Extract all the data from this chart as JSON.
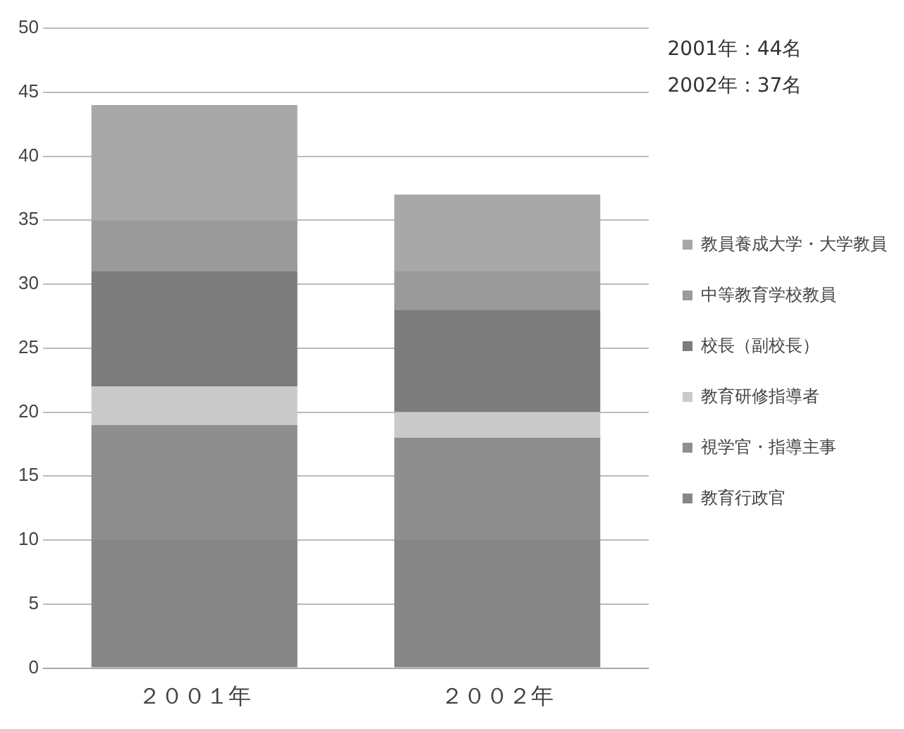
{
  "chart_data": {
    "type": "bar",
    "stacked": true,
    "categories": [
      "２００１年",
      "２００２年"
    ],
    "series": [
      {
        "name": "教員養成大学・大学教員",
        "color": "#a8a8a8",
        "values": [
          9,
          6
        ]
      },
      {
        "name": "中等教育学校教員",
        "color": "#9a9a9a",
        "values": [
          4,
          3
        ]
      },
      {
        "name": "校長（副校長）",
        "color": "#7c7c7c",
        "values": [
          9,
          8
        ]
      },
      {
        "name": "教育研修指導者",
        "color": "#cacaca",
        "values": [
          3,
          2
        ]
      },
      {
        "name": "視学官・指導主事",
        "color": "#8e8e8e",
        "values": [
          9,
          8
        ]
      },
      {
        "name": "教育行政官",
        "color": "#868686",
        "values": [
          10,
          10
        ]
      }
    ],
    "ylim": [
      0,
      50
    ],
    "yticks": [
      0,
      5,
      10,
      15,
      20,
      25,
      30,
      35,
      40,
      45,
      50
    ],
    "grid": "y",
    "legend": "right",
    "annotations": [
      "2001年：44名",
      "2002年：37名"
    ]
  }
}
